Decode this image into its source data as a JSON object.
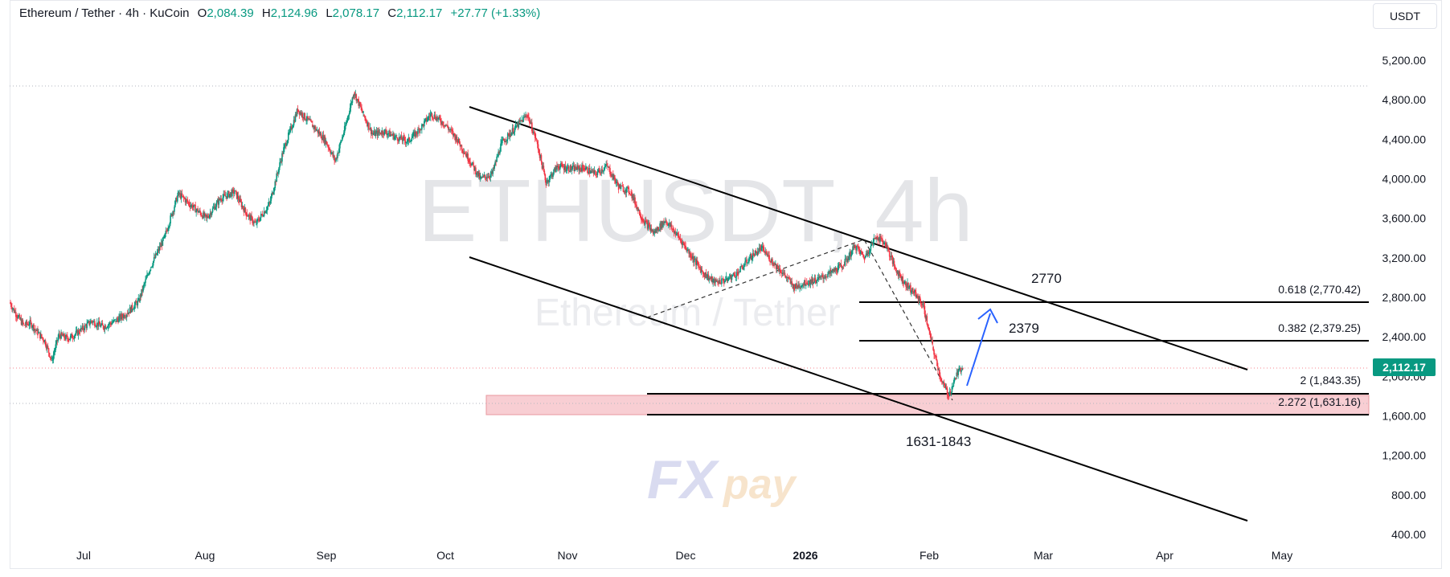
{
  "header": {
    "title": "Ethereum / Tether · 4h · KuCoin",
    "o_key": "O",
    "o_val": "2,084.39",
    "h_key": "H",
    "h_val": "2,124.96",
    "l_key": "L",
    "l_val": "2,078.17",
    "c_key": "C",
    "c_val": "2,112.17",
    "change": "+27.77 (+1.33%)"
  },
  "currency": "USDT",
  "watermark": {
    "symbol": "ETHUSDT, 4h",
    "name": "Ethereum / Tether",
    "logo": "FXpay"
  },
  "colors": {
    "up": "#089981",
    "down": "#f23645",
    "accent": "#2962ff",
    "zone": "#f7c6cb"
  },
  "chart_data": {
    "type": "candlestick",
    "y_ticks": [
      "5,200.00",
      "4,800.00",
      "4,400.00",
      "4,000.00",
      "3,600.00",
      "3,200.00",
      "2,800.00",
      "2,400.00",
      "2,000.00",
      "1,600.00",
      "1,200.00",
      "800.00",
      "400.00"
    ],
    "x_ticks": [
      "Jul",
      "Aug",
      "Sep",
      "Oct",
      "Nov",
      "Dec",
      "2026",
      "Feb",
      "Mar",
      "Apr",
      "May"
    ],
    "ylim": [
      400,
      5350
    ],
    "last_price": "2,112.17",
    "series": [
      {
        "name": "",
        "points": [
          [
            0,
            2750
          ],
          [
            3,
            2620
          ],
          [
            6,
            2520
          ],
          [
            9,
            2540
          ],
          [
            12,
            2440
          ],
          [
            15,
            2360
          ],
          [
            18,
            2160
          ],
          [
            21,
            2420
          ],
          [
            25,
            2380
          ],
          [
            30,
            2460
          ],
          [
            35,
            2560
          ],
          [
            40,
            2500
          ],
          [
            45,
            2560
          ],
          [
            50,
            2640
          ],
          [
            55,
            2760
          ],
          [
            60,
            3100
          ],
          [
            66,
            3400
          ],
          [
            72,
            3850
          ],
          [
            78,
            3720
          ],
          [
            84,
            3600
          ],
          [
            90,
            3800
          ],
          [
            96,
            3870
          ],
          [
            101,
            3650
          ],
          [
            105,
            3540
          ],
          [
            111,
            3750
          ],
          [
            117,
            4300
          ],
          [
            123,
            4700
          ],
          [
            129,
            4550
          ],
          [
            135,
            4380
          ],
          [
            139,
            4180
          ],
          [
            143,
            4500
          ],
          [
            147,
            4880
          ],
          [
            151,
            4650
          ],
          [
            155,
            4450
          ],
          [
            160,
            4480
          ],
          [
            165,
            4420
          ],
          [
            170,
            4380
          ],
          [
            175,
            4500
          ],
          [
            180,
            4660
          ],
          [
            186,
            4550
          ],
          [
            191,
            4400
          ],
          [
            196,
            4200
          ],
          [
            201,
            4000
          ],
          [
            206,
            4050
          ],
          [
            210,
            4360
          ],
          [
            216,
            4520
          ],
          [
            221,
            4650
          ],
          [
            225,
            4380
          ],
          [
            229,
            3960
          ],
          [
            234,
            4130
          ],
          [
            240,
            4100
          ],
          [
            245,
            4110
          ],
          [
            250,
            4050
          ],
          [
            255,
            4130
          ],
          [
            260,
            3920
          ],
          [
            265,
            3870
          ],
          [
            270,
            3600
          ],
          [
            275,
            3450
          ],
          [
            280,
            3580
          ],
          [
            286,
            3400
          ],
          [
            291,
            3220
          ],
          [
            296,
            3050
          ],
          [
            301,
            2950
          ],
          [
            306,
            2980
          ],
          [
            311,
            3050
          ],
          [
            316,
            3200
          ],
          [
            321,
            3300
          ],
          [
            326,
            3150
          ],
          [
            330,
            3050
          ],
          [
            335,
            2900
          ],
          [
            340,
            2950
          ],
          [
            345,
            2980
          ],
          [
            350,
            3040
          ],
          [
            356,
            3130
          ],
          [
            361,
            3320
          ],
          [
            365,
            3200
          ],
          [
            370,
            3420
          ],
          [
            374,
            3340
          ],
          [
            378,
            3100
          ],
          [
            382,
            2950
          ],
          [
            386,
            2850
          ],
          [
            390,
            2720
          ],
          [
            394,
            2300
          ],
          [
            398,
            1940
          ],
          [
            401,
            1810
          ],
          [
            404,
            2000
          ],
          [
            407,
            2112
          ]
        ]
      }
    ],
    "annotations": {
      "fib_levels": [
        {
          "label": "0.618 (2,770.42)",
          "value": 2770.42
        },
        {
          "label": "0.382 (2,379.25)",
          "value": 2379.25
        },
        {
          "label": "2 (1,843.35)",
          "value": 1843.35
        },
        {
          "label": "2.272 (1,631.16)",
          "value": 1631.16
        }
      ],
      "targets": [
        "2770",
        "2379"
      ],
      "support_zone_label": "1631-1843"
    }
  }
}
